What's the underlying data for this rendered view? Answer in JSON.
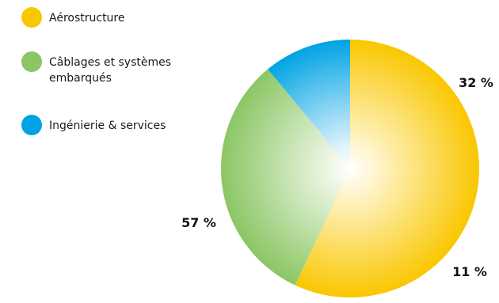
{
  "chart_data": {
    "type": "pie",
    "legend_position": "top-left",
    "slices": [
      {
        "label_lines": [
          "Aérostructure"
        ],
        "value": 57,
        "value_label": "57 %",
        "color": "#f9c700",
        "center_color": "#fff6d2"
      },
      {
        "label_lines": [
          "Câblages et systèmes",
          "embarqués"
        ],
        "value": 32,
        "value_label": "32 %",
        "color": "#8bc664",
        "center_color": "#ecf6e3"
      },
      {
        "label_lines": [
          "Ingénierie & services"
        ],
        "value": 11,
        "value_label": "11 %",
        "color": "#00a3e4",
        "center_color": "#dff3fc"
      }
    ],
    "start_angle_deg": 0,
    "direction": "clockwise"
  }
}
